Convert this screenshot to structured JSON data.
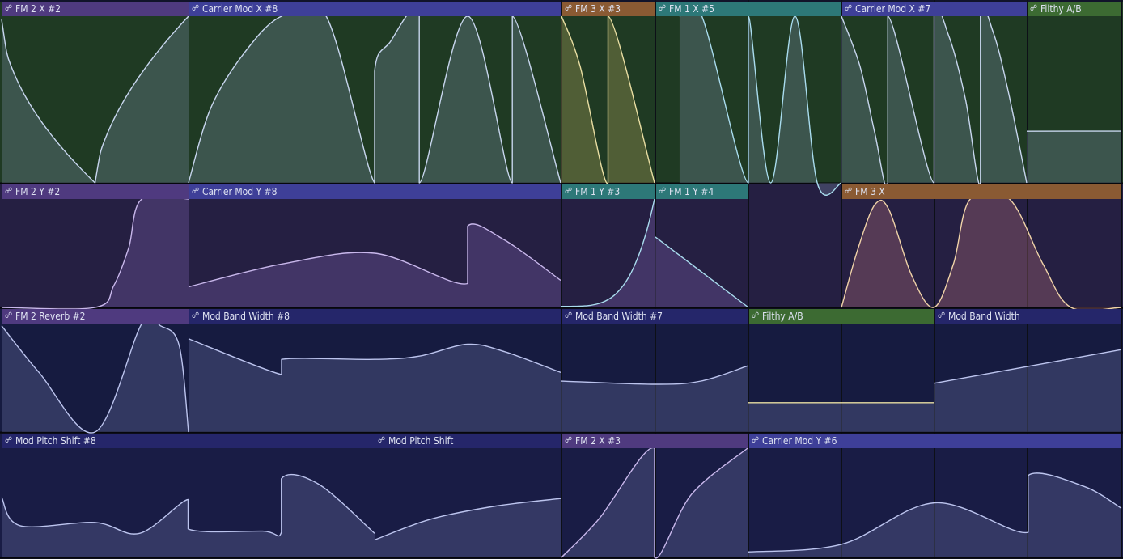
{
  "colors": {
    "header": {
      "purple": "#4f3a7f",
      "blue": "#3e3f98",
      "orange": "#8a5a33",
      "teal": "#2d7878",
      "green": "#3c6a32",
      "navy": "#25266a"
    },
    "track_bg": [
      "#1f3a23",
      "#251f42",
      "#161b40",
      "#191c45"
    ],
    "fill": {
      "green": "rgba(130,150,175,0.30)",
      "yellow": "rgba(185,170,95,0.32)",
      "purple": "rgba(120,95,165,0.36)",
      "orange": "rgba(175,110,120,0.35)",
      "blue": "rgba(110,115,165,0.33)"
    },
    "stroke": {
      "green": "#c8d6ee",
      "yellow": "#e9dea3",
      "purple": "#c9b8ec",
      "orange": "#f0d3a8",
      "blue": "#bcc4ee",
      "teal": "#a9dcee"
    },
    "grid": "#0d1017"
  },
  "icon": "automation-link-icon",
  "clips": [
    {
      "label": "FM 2 X #2",
      "color": "purple"
    },
    {
      "label": "Carrier Mod X #8",
      "color": "blue"
    },
    {
      "label": "FM 3 X #3",
      "color": "orange"
    },
    {
      "label": "FM 1 X #5",
      "color": "teal"
    },
    {
      "label": "Carrier Mod X #7",
      "color": "blue"
    },
    {
      "label": "Filthy A/B",
      "color": "green"
    },
    {
      "label": "FM 2 Y #2",
      "color": "purple"
    },
    {
      "label": "Carrier Mod Y #8",
      "color": "blue"
    },
    {
      "label": "FM 1 Y #3",
      "color": "teal"
    },
    {
      "label": "FM 1 Y #4",
      "color": "teal"
    },
    {
      "label": "FM 3 X",
      "color": "orange"
    },
    {
      "label": "FM 2 Reverb #2",
      "color": "purple"
    },
    {
      "label": "Mod Band Width #8",
      "color": "navy"
    },
    {
      "label": "Mod Band Width #7",
      "color": "navy"
    },
    {
      "label": "Filthy A/B",
      "color": "green"
    },
    {
      "label": "Mod Band Width",
      "color": "navy"
    },
    {
      "label": "Mod Pitch Shift #8",
      "color": "navy"
    },
    {
      "label": "Mod Pitch Shift",
      "color": "navy"
    },
    {
      "label": "FM 2 X #3",
      "color": "purple"
    },
    {
      "label": "Carrier Mod Y #6",
      "color": "blue"
    }
  ]
}
